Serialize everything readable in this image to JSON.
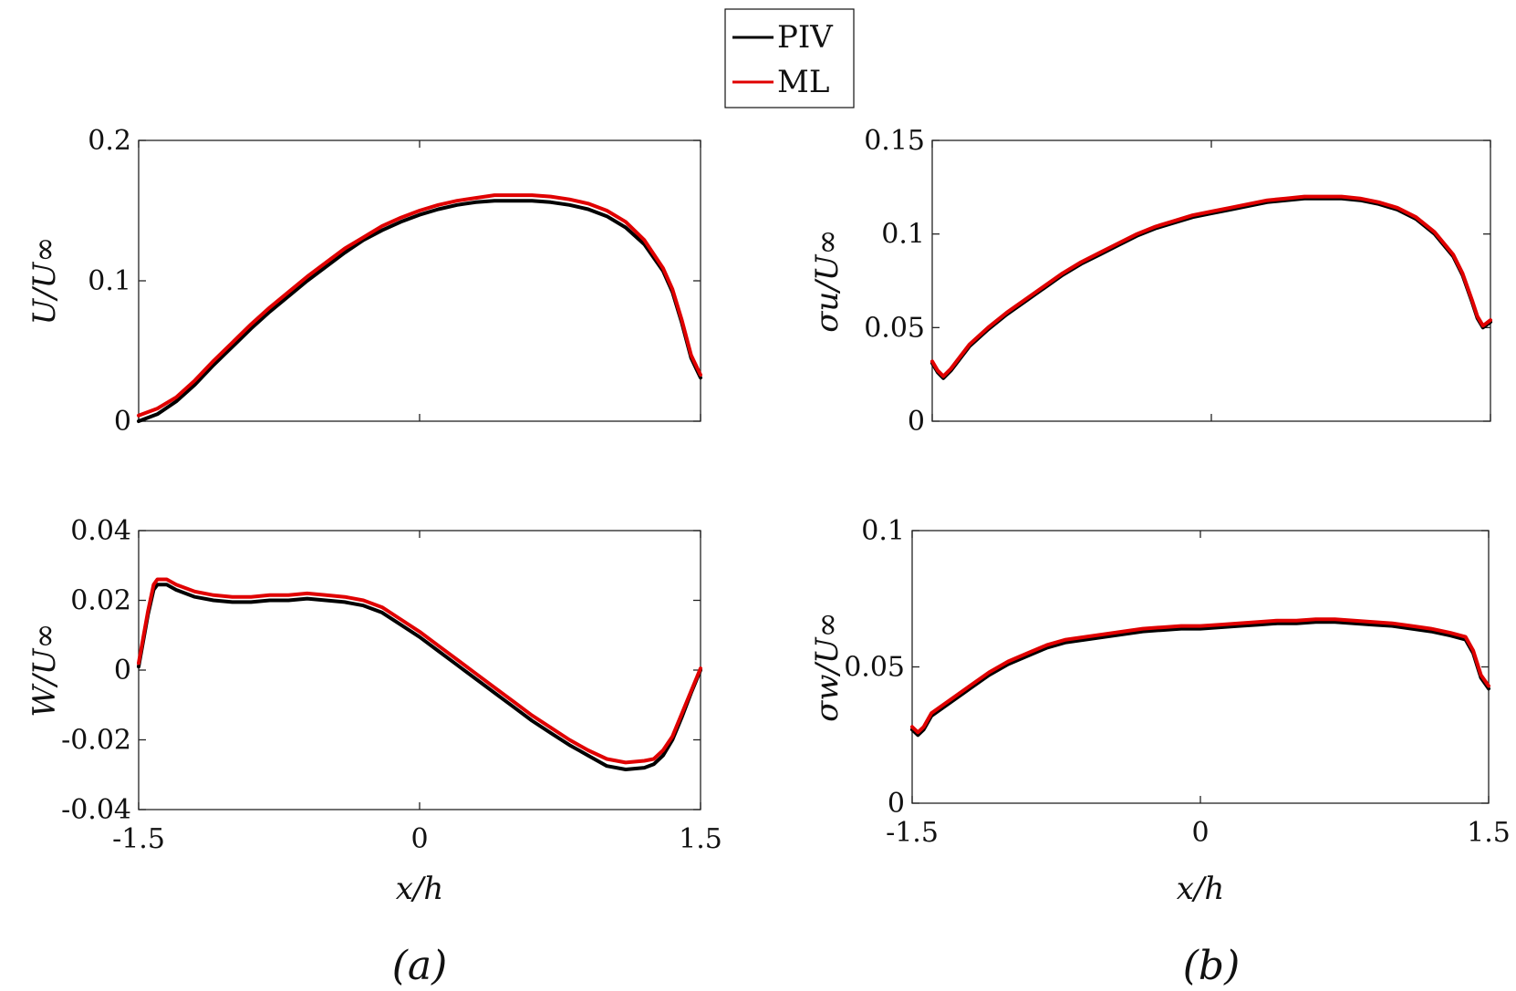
{
  "legend": {
    "entries": [
      {
        "label": "PIV",
        "color": "#000000"
      },
      {
        "label": "ML",
        "color": "#e00000"
      }
    ]
  },
  "captions": [
    "(a)",
    "(b)"
  ],
  "chart_data": [
    {
      "id": "U",
      "type": "line",
      "ylabel": "U/U∞",
      "xlabel": "",
      "xlim": [
        -1.5,
        1.5
      ],
      "ylim": [
        0,
        0.2
      ],
      "yticks": [
        0,
        0.1,
        0.2
      ],
      "ytick_labels": [
        "0",
        "0.1",
        "0.2"
      ],
      "xticks": [
        -1.5,
        0,
        1.5
      ],
      "xtick_labels": [],
      "series": [
        {
          "name": "PIV",
          "color": "#000000",
          "x": [
            -1.5,
            -1.4,
            -1.3,
            -1.2,
            -1.1,
            -1.0,
            -0.9,
            -0.8,
            -0.7,
            -0.6,
            -0.5,
            -0.4,
            -0.3,
            -0.2,
            -0.1,
            0.0,
            0.1,
            0.2,
            0.3,
            0.4,
            0.5,
            0.6,
            0.7,
            0.8,
            0.9,
            1.0,
            1.1,
            1.2,
            1.3,
            1.35,
            1.4,
            1.45,
            1.5
          ],
          "y": [
            0.0,
            0.005,
            0.014,
            0.026,
            0.04,
            0.053,
            0.066,
            0.078,
            0.089,
            0.1,
            0.11,
            0.12,
            0.129,
            0.136,
            0.142,
            0.147,
            0.151,
            0.154,
            0.156,
            0.157,
            0.157,
            0.157,
            0.156,
            0.154,
            0.151,
            0.146,
            0.138,
            0.126,
            0.107,
            0.092,
            0.07,
            0.045,
            0.031
          ]
        },
        {
          "name": "ML",
          "color": "#e00000",
          "x": [
            -1.5,
            -1.4,
            -1.3,
            -1.2,
            -1.1,
            -1.0,
            -0.9,
            -0.8,
            -0.7,
            -0.6,
            -0.5,
            -0.4,
            -0.3,
            -0.2,
            -0.1,
            0.0,
            0.1,
            0.2,
            0.3,
            0.4,
            0.5,
            0.6,
            0.7,
            0.8,
            0.9,
            1.0,
            1.1,
            1.2,
            1.3,
            1.35,
            1.4,
            1.45,
            1.5
          ],
          "y": [
            0.004,
            0.009,
            0.017,
            0.029,
            0.043,
            0.056,
            0.069,
            0.081,
            0.092,
            0.103,
            0.113,
            0.123,
            0.131,
            0.139,
            0.145,
            0.15,
            0.154,
            0.157,
            0.159,
            0.161,
            0.161,
            0.161,
            0.16,
            0.158,
            0.155,
            0.15,
            0.142,
            0.129,
            0.109,
            0.094,
            0.072,
            0.047,
            0.033
          ]
        }
      ]
    },
    {
      "id": "sigma_u",
      "type": "line",
      "ylabel": "σu/U∞",
      "xlabel": "",
      "xlim": [
        -1.5,
        1.5
      ],
      "ylim": [
        0,
        0.15
      ],
      "yticks": [
        0,
        0.05,
        0.1,
        0.15
      ],
      "ytick_labels": [
        "0",
        "0.05",
        "0.1",
        "0.15"
      ],
      "xticks": [
        -1.5,
        0,
        1.5
      ],
      "xtick_labels": [],
      "series": [
        {
          "name": "PIV",
          "color": "#000000",
          "x": [
            -1.5,
            -1.47,
            -1.44,
            -1.4,
            -1.3,
            -1.2,
            -1.1,
            -1.0,
            -0.9,
            -0.8,
            -0.7,
            -0.6,
            -0.5,
            -0.4,
            -0.3,
            -0.2,
            -0.1,
            0.0,
            0.1,
            0.2,
            0.3,
            0.4,
            0.5,
            0.6,
            0.7,
            0.8,
            0.9,
            1.0,
            1.1,
            1.2,
            1.3,
            1.35,
            1.4,
            1.43,
            1.46,
            1.5
          ],
          "y": [
            0.031,
            0.026,
            0.023,
            0.027,
            0.04,
            0.049,
            0.057,
            0.064,
            0.071,
            0.078,
            0.084,
            0.089,
            0.094,
            0.099,
            0.103,
            0.106,
            0.109,
            0.111,
            0.113,
            0.115,
            0.117,
            0.118,
            0.119,
            0.119,
            0.119,
            0.118,
            0.116,
            0.113,
            0.108,
            0.1,
            0.088,
            0.078,
            0.064,
            0.055,
            0.05,
            0.053
          ]
        },
        {
          "name": "ML",
          "color": "#e00000",
          "x": [
            -1.5,
            -1.47,
            -1.44,
            -1.4,
            -1.3,
            -1.2,
            -1.1,
            -1.0,
            -0.9,
            -0.8,
            -0.7,
            -0.6,
            -0.5,
            -0.4,
            -0.3,
            -0.2,
            -0.1,
            0.0,
            0.1,
            0.2,
            0.3,
            0.4,
            0.5,
            0.6,
            0.7,
            0.8,
            0.9,
            1.0,
            1.1,
            1.2,
            1.3,
            1.35,
            1.4,
            1.43,
            1.46,
            1.5
          ],
          "y": [
            0.032,
            0.027,
            0.024,
            0.028,
            0.041,
            0.05,
            0.058,
            0.065,
            0.072,
            0.079,
            0.085,
            0.09,
            0.095,
            0.1,
            0.104,
            0.107,
            0.11,
            0.112,
            0.114,
            0.116,
            0.118,
            0.119,
            0.12,
            0.12,
            0.12,
            0.119,
            0.117,
            0.114,
            0.109,
            0.101,
            0.089,
            0.079,
            0.065,
            0.056,
            0.051,
            0.054
          ]
        }
      ]
    },
    {
      "id": "W",
      "type": "line",
      "ylabel": "W/U∞",
      "xlabel": "x/h",
      "xlim": [
        -1.5,
        1.5
      ],
      "ylim": [
        -0.04,
        0.04
      ],
      "yticks": [
        -0.04,
        -0.02,
        0,
        0.02,
        0.04
      ],
      "ytick_labels": [
        "-0.04",
        "-0.02",
        "0",
        "0.02",
        "0.04"
      ],
      "xticks": [
        -1.5,
        0,
        1.5
      ],
      "xtick_labels": [
        "-1.5",
        "0",
        "1.5"
      ],
      "series": [
        {
          "name": "PIV",
          "color": "#000000",
          "x": [
            -1.5,
            -1.45,
            -1.42,
            -1.4,
            -1.35,
            -1.3,
            -1.2,
            -1.1,
            -1.0,
            -0.9,
            -0.8,
            -0.7,
            -0.6,
            -0.5,
            -0.4,
            -0.3,
            -0.2,
            -0.1,
            0.0,
            0.1,
            0.2,
            0.3,
            0.4,
            0.5,
            0.6,
            0.7,
            0.8,
            0.9,
            1.0,
            1.1,
            1.2,
            1.25,
            1.3,
            1.35,
            1.4,
            1.45,
            1.5
          ],
          "y": [
            0.001,
            0.016,
            0.023,
            0.0245,
            0.0245,
            0.023,
            0.021,
            0.02,
            0.0195,
            0.0195,
            0.02,
            0.02,
            0.0205,
            0.02,
            0.0195,
            0.0185,
            0.0165,
            0.013,
            0.0095,
            0.0055,
            0.0015,
            -0.0025,
            -0.0065,
            -0.0105,
            -0.0145,
            -0.018,
            -0.0215,
            -0.0245,
            -0.0275,
            -0.0285,
            -0.028,
            -0.027,
            -0.0245,
            -0.02,
            -0.0135,
            -0.0065,
            0.0
          ]
        },
        {
          "name": "ML",
          "color": "#e00000",
          "x": [
            -1.5,
            -1.45,
            -1.42,
            -1.4,
            -1.35,
            -1.3,
            -1.2,
            -1.1,
            -1.0,
            -0.9,
            -0.8,
            -0.7,
            -0.6,
            -0.5,
            -0.4,
            -0.3,
            -0.2,
            -0.1,
            0.0,
            0.1,
            0.2,
            0.3,
            0.4,
            0.5,
            0.6,
            0.7,
            0.8,
            0.9,
            1.0,
            1.1,
            1.2,
            1.25,
            1.3,
            1.35,
            1.4,
            1.45,
            1.5
          ],
          "y": [
            0.002,
            0.017,
            0.0245,
            0.026,
            0.026,
            0.0245,
            0.0225,
            0.0215,
            0.021,
            0.021,
            0.0215,
            0.0215,
            0.022,
            0.0215,
            0.021,
            0.02,
            0.018,
            0.0145,
            0.011,
            0.007,
            0.003,
            -0.001,
            -0.005,
            -0.009,
            -0.013,
            -0.0165,
            -0.02,
            -0.023,
            -0.0255,
            -0.0265,
            -0.026,
            -0.0255,
            -0.023,
            -0.019,
            -0.0125,
            -0.006,
            0.0005
          ]
        }
      ]
    },
    {
      "id": "sigma_w",
      "type": "line",
      "ylabel": "σw/U∞",
      "xlabel": "x/h",
      "xlim": [
        -1.5,
        1.5
      ],
      "ylim": [
        0,
        0.1
      ],
      "yticks": [
        0,
        0.05,
        0.1
      ],
      "ytick_labels": [
        "0",
        "0.05",
        "0.1"
      ],
      "xticks": [
        -1.5,
        0,
        1.5
      ],
      "xtick_labels": [
        "-1.5",
        "0",
        "1.5"
      ],
      "series": [
        {
          "name": "PIV",
          "color": "#000000",
          "x": [
            -1.5,
            -1.47,
            -1.44,
            -1.4,
            -1.3,
            -1.2,
            -1.1,
            -1.0,
            -0.9,
            -0.8,
            -0.7,
            -0.6,
            -0.5,
            -0.4,
            -0.3,
            -0.2,
            -0.1,
            0.0,
            0.1,
            0.2,
            0.3,
            0.4,
            0.5,
            0.6,
            0.7,
            0.8,
            0.9,
            1.0,
            1.1,
            1.2,
            1.3,
            1.38,
            1.42,
            1.46,
            1.5
          ],
          "y": [
            0.027,
            0.025,
            0.027,
            0.032,
            0.037,
            0.042,
            0.047,
            0.051,
            0.054,
            0.057,
            0.059,
            0.06,
            0.061,
            0.062,
            0.063,
            0.0635,
            0.064,
            0.064,
            0.0645,
            0.065,
            0.0655,
            0.066,
            0.066,
            0.0665,
            0.0665,
            0.066,
            0.0655,
            0.065,
            0.064,
            0.063,
            0.0615,
            0.06,
            0.055,
            0.046,
            0.042
          ]
        },
        {
          "name": "ML",
          "color": "#e00000",
          "x": [
            -1.5,
            -1.47,
            -1.44,
            -1.4,
            -1.3,
            -1.2,
            -1.1,
            -1.0,
            -0.9,
            -0.8,
            -0.7,
            -0.6,
            -0.5,
            -0.4,
            -0.3,
            -0.2,
            -0.1,
            0.0,
            0.1,
            0.2,
            0.3,
            0.4,
            0.5,
            0.6,
            0.7,
            0.8,
            0.9,
            1.0,
            1.1,
            1.2,
            1.3,
            1.38,
            1.42,
            1.46,
            1.5
          ],
          "y": [
            0.028,
            0.026,
            0.028,
            0.033,
            0.038,
            0.043,
            0.048,
            0.052,
            0.055,
            0.058,
            0.06,
            0.061,
            0.062,
            0.063,
            0.064,
            0.0645,
            0.065,
            0.065,
            0.0655,
            0.066,
            0.0665,
            0.067,
            0.067,
            0.0675,
            0.0675,
            0.067,
            0.0665,
            0.066,
            0.065,
            0.064,
            0.0625,
            0.061,
            0.056,
            0.047,
            0.043
          ]
        }
      ]
    }
  ]
}
